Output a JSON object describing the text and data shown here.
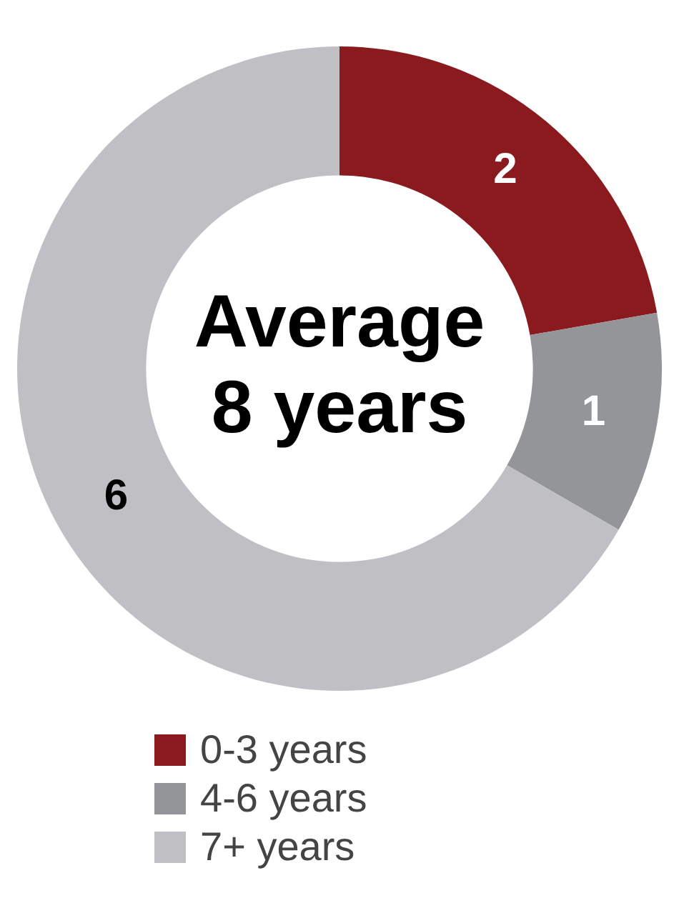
{
  "chart_data": {
    "type": "donut",
    "categories": [
      "0-3 years",
      "4-6 years",
      "7+ years"
    ],
    "values": [
      2,
      1,
      6
    ],
    "colors": [
      "#8b1a1f",
      "#939598",
      "#c0c0c4"
    ],
    "data_labels": true,
    "legend": "bottom",
    "annotations": [
      "Average 8 years"
    ]
  }
}
